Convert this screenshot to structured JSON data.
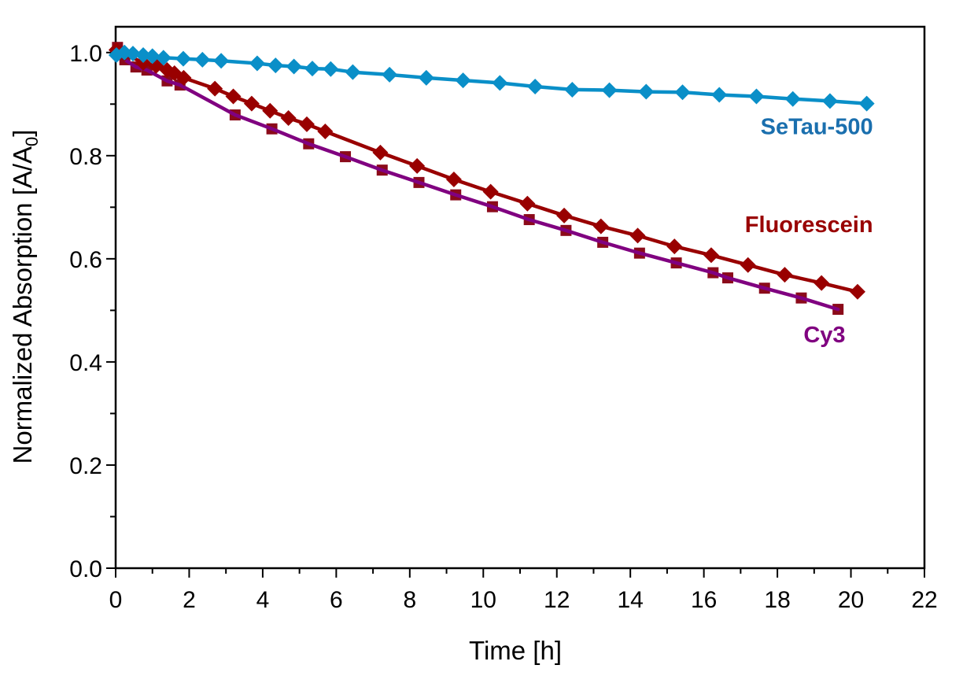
{
  "chart_data": {
    "type": "line",
    "title": "",
    "xlabel": "Time [h]",
    "ylabel_main": "Normalized Absorption [A/A",
    "ylabel_sub": "0",
    "ylabel_end": "]",
    "xlim": [
      0,
      22
    ],
    "ylim": [
      0,
      1.05
    ],
    "xticks": [
      0,
      2,
      4,
      6,
      8,
      10,
      12,
      14,
      16,
      18,
      20,
      22
    ],
    "xtick_labels": [
      "0",
      "2",
      "4",
      "6",
      "8",
      "10",
      "12",
      "14",
      "16",
      "18",
      "20",
      "22"
    ],
    "yticks": [
      0.0,
      0.2,
      0.4,
      0.6,
      0.8,
      1.0
    ],
    "ytick_labels": [
      "0.0",
      "0.2",
      "0.4",
      "0.6",
      "0.8",
      "1.0"
    ],
    "x_minor_step": 1,
    "y_minor_step": 0.1,
    "grid": false,
    "legend": "inline labels at line ends",
    "series": [
      {
        "name": "SeTau-500",
        "label": "SeTau-500",
        "marker": "diamond",
        "line_color": "#0a8fc8",
        "marker_color": "#0a8fc8",
        "label_color": "#1a6fae",
        "label_anchor": [
          20.6,
          0.842
        ],
        "x": [
          0.02,
          0.24,
          0.47,
          0.75,
          1.0,
          1.3,
          1.84,
          2.36,
          2.87,
          3.85,
          4.35,
          4.85,
          5.35,
          5.85,
          6.45,
          7.45,
          8.45,
          9.45,
          10.45,
          11.41,
          12.42,
          13.43,
          14.43,
          15.42,
          16.42,
          17.43,
          18.42,
          19.43,
          20.43
        ],
        "y": [
          0.995,
          1.0,
          0.998,
          0.995,
          0.993,
          0.99,
          0.988,
          0.986,
          0.984,
          0.979,
          0.975,
          0.973,
          0.969,
          0.968,
          0.962,
          0.957,
          0.951,
          0.946,
          0.941,
          0.934,
          0.928,
          0.927,
          0.924,
          0.923,
          0.918,
          0.915,
          0.91,
          0.906,
          0.901
        ]
      },
      {
        "name": "Fluorescein",
        "label": "Fluorescein",
        "marker": "diamond",
        "line_color": "#990000",
        "marker_color": "#990000",
        "label_color": "#990000",
        "label_anchor": [
          20.6,
          0.652
        ],
        "x": [
          0.02,
          0.24,
          0.75,
          1.1,
          1.4,
          1.6,
          1.85,
          2.7,
          3.2,
          3.7,
          4.2,
          4.7,
          5.2,
          5.7,
          7.2,
          8.2,
          9.2,
          10.2,
          11.2,
          12.2,
          13.2,
          14.2,
          15.2,
          16.2,
          17.2,
          18.2,
          19.2,
          20.18
        ],
        "y": [
          1.005,
          0.998,
          0.98,
          0.974,
          0.966,
          0.96,
          0.951,
          0.93,
          0.915,
          0.901,
          0.887,
          0.873,
          0.861,
          0.847,
          0.806,
          0.78,
          0.754,
          0.73,
          0.707,
          0.684,
          0.663,
          0.645,
          0.624,
          0.607,
          0.588,
          0.569,
          0.553,
          0.536
        ]
      },
      {
        "name": "Cy3",
        "label": "Cy3",
        "marker": "square",
        "line_color": "#800080",
        "marker_color": "#8b0a1a",
        "label_color": "#800080",
        "label_anchor": [
          19.85,
          0.438
        ],
        "x": [
          0.05,
          0.25,
          0.55,
          0.85,
          1.4,
          1.75,
          3.25,
          4.25,
          5.25,
          6.25,
          7.25,
          8.25,
          9.25,
          10.25,
          11.25,
          12.25,
          13.25,
          14.25,
          15.25,
          16.25,
          16.65,
          17.65,
          18.65,
          19.65
        ],
        "y": [
          1.01,
          0.986,
          0.972,
          0.966,
          0.945,
          0.937,
          0.879,
          0.852,
          0.823,
          0.798,
          0.772,
          0.748,
          0.724,
          0.701,
          0.676,
          0.655,
          0.632,
          0.611,
          0.592,
          0.573,
          0.563,
          0.543,
          0.524,
          0.502
        ]
      }
    ]
  }
}
